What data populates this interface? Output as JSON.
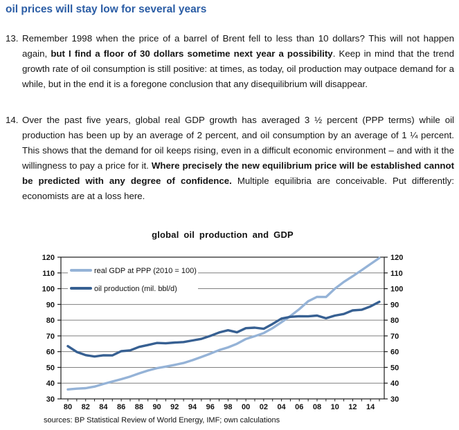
{
  "document": {
    "heading": "oil prices will stay low for several years",
    "paragraphs": [
      {
        "number": "13.",
        "segments": [
          {
            "text": "Remember 1998 when the price of a barrel of Brent fell to less than 10 dollars? This will not happen again, ",
            "bold": false
          },
          {
            "text": "but I find a floor of 30 dollars sometime next year a possibility",
            "bold": true
          },
          {
            "text": ". Keep in mind that the trend growth rate of oil consumption is still positive: at times, as today, oil production may outpace demand for a while, but in the end it is a foregone conclusion that any disequilibrium will disappear.",
            "bold": false
          }
        ]
      },
      {
        "number": "14.",
        "segments": [
          {
            "text": "Over the past five years, global real GDP growth has averaged 3 ½ percent (PPP terms) while oil production has been up by an average of 2 percent, and oil consumption by an average of 1 ¼ percent. This shows that the demand for oil keeps rising, even in a difficult economic environment – and with it the willingness to pay a price for it. ",
            "bold": false
          },
          {
            "text": "Where precisely the new equilibrium price will be established cannot be predicted with any degree of confidence.",
            "bold": true
          },
          {
            "text": " Multiple equilibria are conceivable. Put differently: economists are at a loss here.",
            "bold": false
          }
        ]
      }
    ],
    "sources_note": "sources: BP Statistical Review of World Energy, IMF; own calculations"
  },
  "chart_data": {
    "type": "line",
    "title": "global oil production and GDP",
    "x": [
      1980,
      1981,
      1982,
      1983,
      1984,
      1985,
      1986,
      1987,
      1988,
      1989,
      1990,
      1991,
      1992,
      1993,
      1994,
      1995,
      1996,
      1997,
      1998,
      1999,
      2000,
      2001,
      2002,
      2003,
      2004,
      2005,
      2006,
      2007,
      2008,
      2009,
      2010,
      2011,
      2012,
      2013,
      2014,
      2015
    ],
    "x_tick_labels": [
      "80",
      "82",
      "84",
      "86",
      "88",
      "90",
      "92",
      "94",
      "96",
      "98",
      "00",
      "02",
      "04",
      "06",
      "08",
      "10",
      "12",
      "14"
    ],
    "series": [
      {
        "name": "real GDP at PPP (2010 = 100)",
        "color": "#95B3D7",
        "values": [
          36.0,
          36.5,
          36.8,
          37.8,
          39.5,
          41.0,
          42.5,
          44.2,
          46.2,
          48.0,
          49.5,
          50.5,
          51.6,
          52.8,
          54.6,
          56.6,
          58.7,
          61.0,
          62.7,
          65.0,
          68.0,
          69.8,
          71.8,
          74.9,
          78.7,
          82.6,
          87.0,
          92.0,
          94.8,
          94.7,
          100.0,
          104.3,
          107.9,
          111.7,
          115.6,
          119.5
        ]
      },
      {
        "name": "oil production (mil. bbl/d)",
        "color": "#376092",
        "values": [
          63.5,
          59.8,
          57.8,
          56.9,
          57.7,
          57.6,
          60.3,
          60.8,
          63.0,
          64.2,
          65.5,
          65.3,
          65.8,
          66.1,
          67.1,
          68.1,
          70.0,
          72.2,
          73.6,
          72.3,
          74.9,
          75.2,
          74.5,
          77.6,
          81.0,
          82.1,
          82.5,
          82.4,
          82.9,
          81.2,
          82.9,
          83.9,
          86.2,
          86.6,
          88.7,
          91.7
        ]
      }
    ],
    "ylim": [
      30,
      120
    ],
    "y_tick_step": 10,
    "grid": true,
    "legend_position": "top-left-inside",
    "xlabel": "",
    "ylabel": ""
  },
  "colors": {
    "heading": "#2b5da5",
    "body_text": "#151515",
    "gdp_line": "#95B3D7",
    "oil_line": "#376092",
    "gridline": "#7f7f7f",
    "axis": "#1a1a1a",
    "background": "#ffffff"
  }
}
